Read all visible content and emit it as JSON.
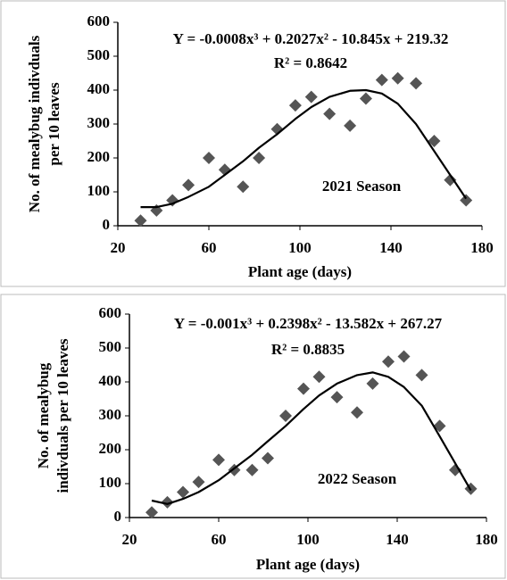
{
  "chart_data": [
    {
      "type": "scatter",
      "annotation": "2021 Season",
      "equation": "Y = -0.0008x³ + 0.2027x² - 10.845x + 219.32",
      "r_squared": "R² = 0.8642",
      "xlabel": "Plant age (days)",
      "ylabel": [
        "No. of mealybug indivduals",
        "per 10 leaves"
      ],
      "xlim": [
        20,
        180
      ],
      "xticks": [
        20,
        60,
        100,
        140,
        180
      ],
      "ylim": [
        0,
        600
      ],
      "yticks": [
        0,
        100,
        200,
        300,
        400,
        500,
        600
      ],
      "series": [
        {
          "type": "scatter",
          "color": "#555555",
          "x": [
            30,
            37,
            44,
            51,
            60,
            67,
            75,
            82,
            90,
            98,
            105,
            113,
            122,
            129,
            136,
            143,
            151,
            159,
            166,
            173
          ],
          "values": [
            15,
            45,
            75,
            120,
            200,
            165,
            115,
            200,
            285,
            355,
            380,
            330,
            295,
            375,
            430,
            435,
            420,
            250,
            135,
            75
          ]
        },
        {
          "type": "line",
          "color": "#000000",
          "x": [
            30,
            37,
            44,
            51,
            60,
            67,
            75,
            82,
            90,
            98,
            105,
            113,
            122,
            129,
            136,
            143,
            151,
            159,
            166,
            173
          ],
          "values": [
            55,
            55,
            65,
            85,
            115,
            150,
            190,
            230,
            270,
            315,
            350,
            380,
            398,
            400,
            390,
            360,
            300,
            220,
            150,
            80
          ]
        }
      ]
    },
    {
      "type": "scatter",
      "annotation": "2022 Season",
      "equation": "Y = -0.001x³ + 0.2398x² - 13.582x + 267.27",
      "r_squared": "R² = 0.8835",
      "xlabel": "Plant age (days)",
      "ylabel": [
        "No. of mealybug",
        "indivduals per 10 leaves"
      ],
      "xlim": [
        20,
        180
      ],
      "xticks": [
        20,
        60,
        100,
        140,
        180
      ],
      "ylim": [
        0,
        600
      ],
      "yticks": [
        0,
        100,
        200,
        300,
        400,
        500,
        600
      ],
      "series": [
        {
          "type": "scatter",
          "color": "#555555",
          "x": [
            30,
            37,
            44,
            51,
            60,
            67,
            75,
            82,
            90,
            98,
            105,
            113,
            122,
            129,
            136,
            143,
            151,
            159,
            166,
            173
          ],
          "values": [
            15,
            45,
            75,
            105,
            170,
            140,
            140,
            175,
            300,
            380,
            415,
            355,
            310,
            395,
            460,
            475,
            420,
            270,
            140,
            85
          ]
        },
        {
          "type": "line",
          "color": "#000000",
          "x": [
            30,
            37,
            44,
            51,
            60,
            67,
            75,
            82,
            90,
            98,
            105,
            113,
            122,
            129,
            136,
            143,
            151,
            159,
            166,
            173
          ],
          "values": [
            50,
            40,
            55,
            75,
            110,
            145,
            185,
            225,
            270,
            320,
            360,
            395,
            420,
            428,
            415,
            385,
            330,
            240,
            160,
            80
          ]
        }
      ]
    }
  ]
}
